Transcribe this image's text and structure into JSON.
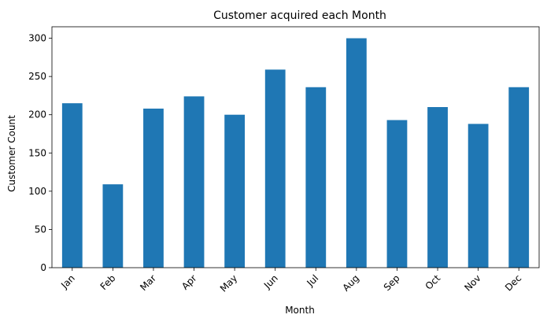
{
  "chart_data": {
    "type": "bar",
    "title": "Customer acquired each Month",
    "xlabel": "Month",
    "ylabel": "Customer Count",
    "categories": [
      "Jan",
      "Feb",
      "Mar",
      "Apr",
      "May",
      "Jun",
      "Jul",
      "Aug",
      "Sep",
      "Oct",
      "Nov",
      "Dec"
    ],
    "values": [
      215,
      109,
      208,
      224,
      200,
      259,
      236,
      300,
      193,
      210,
      188,
      236
    ],
    "ylim": [
      0,
      315
    ],
    "yticks": [
      0,
      50,
      100,
      150,
      200,
      250,
      300
    ],
    "bar_color": "#1f77b4",
    "grid": false,
    "legend": "none"
  }
}
